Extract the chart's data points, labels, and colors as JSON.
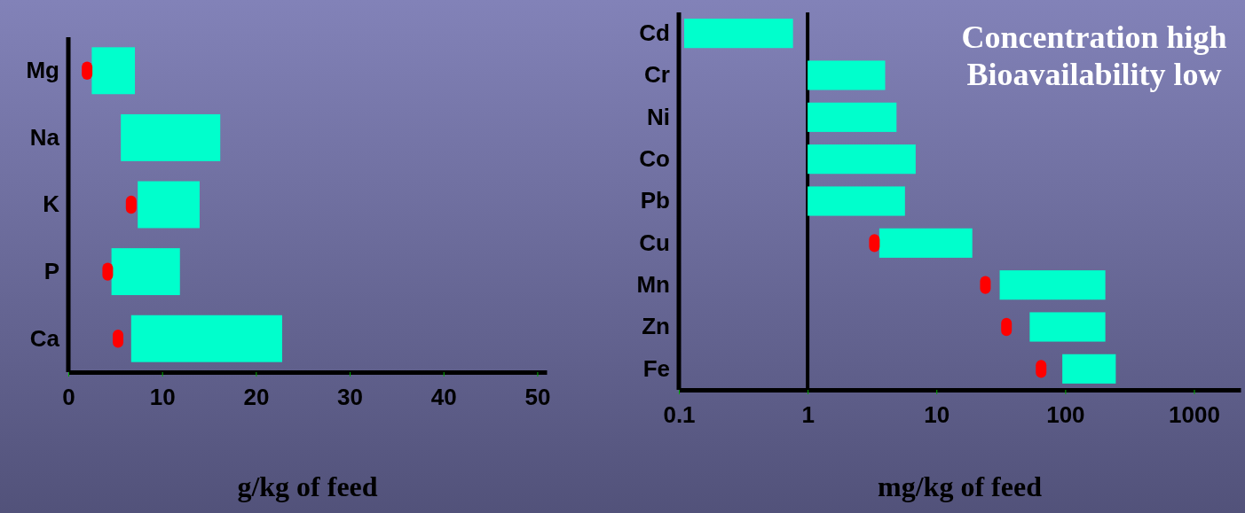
{
  "chart_data": [
    {
      "type": "bar",
      "orientation": "horizontal",
      "categories": [
        "Mg",
        "Na",
        "K",
        "P",
        "Ca"
      ],
      "series": [
        {
          "type": "bar",
          "color": "#00ffcc",
          "base": [
            2.5,
            5.6,
            7.4,
            4.6,
            6.7
          ],
          "values": [
            4.6,
            10.6,
            6.6,
            7.3,
            16.1
          ]
        },
        {
          "type": "scatter",
          "color": "#ff0000",
          "values": [
            2.0,
            null,
            6.7,
            4.2,
            5.3
          ]
        }
      ],
      "xlim": [
        0,
        51
      ],
      "xticks": [
        0,
        10,
        20,
        30,
        40,
        50
      ],
      "xlabel": "g/kg of feed"
    },
    {
      "type": "bar",
      "orientation": "horizontal",
      "log": "x",
      "categories": [
        "Cd",
        "Cr",
        "Ni",
        "Co",
        "Pb",
        "Cu",
        "Mn",
        "Zn",
        "Fe"
      ],
      "series": [
        {
          "type": "bar",
          "color": "#00ffcc",
          "base": [
            0.11,
            1,
            1,
            1,
            1,
            3.6,
            31,
            53,
            95
          ],
          "values": [
            0.66,
            3.0,
            3.9,
            5.9,
            4.7,
            15.4,
            174,
            152,
            152
          ]
        },
        {
          "type": "scatter",
          "color": "#ff0000",
          "values": [
            null,
            null,
            null,
            null,
            null,
            3.3,
            24,
            35,
            65
          ]
        }
      ],
      "xlim": [
        0.1,
        2300
      ],
      "xticks": [
        0.1,
        1,
        10,
        100,
        1000
      ],
      "xlabel": "mg/kg of feed",
      "ref_lines": [
        {
          "axis": "x",
          "value": 1,
          "color": "#000000"
        }
      ],
      "annotations": [
        "Concentration high",
        "Bioavailability low"
      ]
    }
  ]
}
